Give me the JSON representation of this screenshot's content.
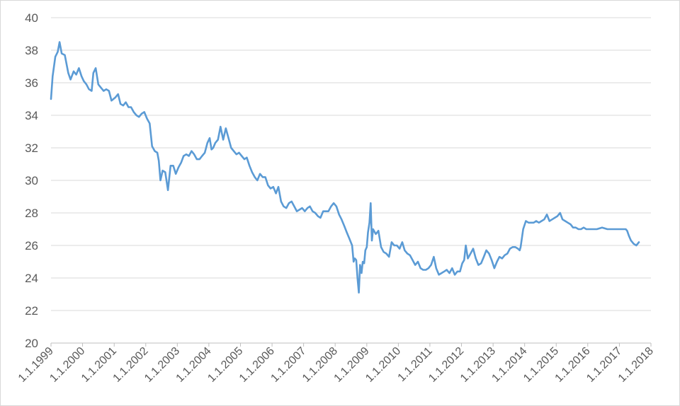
{
  "chart_data": {
    "type": "line",
    "title": "",
    "xlabel": "",
    "ylabel": "",
    "ylim": [
      20,
      40
    ],
    "xlim": [
      "1999-01-01",
      "2018-01-01"
    ],
    "grid": {
      "horizontal": true,
      "vertical": false
    },
    "legend": "none",
    "y_ticks": [
      "20",
      "22",
      "24",
      "26",
      "28",
      "30",
      "32",
      "34",
      "36",
      "38",
      "40"
    ],
    "x_ticks": [
      "1.1.1999",
      "1.1.2000",
      "1.1.2001",
      "1.1.2002",
      "1.1.2003",
      "1.1.2004",
      "1.1.2005",
      "1.1.2006",
      "1.1.2007",
      "1.1.2008",
      "1.1.2009",
      "1.1.2010",
      "1.1.2011",
      "1.1.2012",
      "1.1.2013",
      "1.1.2014",
      "1.1.2015",
      "1.1.2016",
      "1.1.2017",
      "1.1.2018"
    ],
    "series": [
      {
        "color": "#5b9bd5",
        "x": [
          "1999-01-01",
          "1999-01-20",
          "1999-02-20",
          "1999-03-20",
          "1999-04-10",
          "1999-05-05",
          "1999-06-10",
          "1999-07-20",
          "1999-08-15",
          "1999-09-20",
          "1999-10-20",
          "1999-11-20",
          "1999-12-20",
          "2000-01-15",
          "2000-02-15",
          "2000-03-15",
          "2000-04-15",
          "2000-05-05",
          "2000-06-01",
          "2000-07-01",
          "2000-08-01",
          "2000-09-01",
          "2000-10-01",
          "2000-11-01",
          "2000-12-01",
          "2001-01-15",
          "2001-02-15",
          "2001-03-15",
          "2001-04-15",
          "2001-05-15",
          "2001-06-15",
          "2001-07-15",
          "2001-08-15",
          "2001-09-15",
          "2001-10-15",
          "2001-11-15",
          "2001-12-15",
          "2002-01-15",
          "2002-02-15",
          "2002-03-15",
          "2002-04-15",
          "2002-05-15",
          "2002-06-01",
          "2002-06-20",
          "2002-07-15",
          "2002-08-15",
          "2002-09-15",
          "2002-10-15",
          "2002-11-15",
          "2002-12-15",
          "2003-01-15",
          "2003-02-15",
          "2003-03-15",
          "2003-04-15",
          "2003-05-15",
          "2003-06-15",
          "2003-07-15",
          "2003-08-15",
          "2003-09-15",
          "2003-10-15",
          "2003-11-15",
          "2003-12-15",
          "2004-01-10",
          "2004-02-01",
          "2004-02-20",
          "2004-03-15",
          "2004-04-15",
          "2004-05-15",
          "2004-06-15",
          "2004-07-15",
          "2004-08-15",
          "2004-09-15",
          "2004-10-15",
          "2004-11-15",
          "2004-12-15",
          "2005-01-15",
          "2005-02-15",
          "2005-03-15",
          "2005-04-15",
          "2005-05-15",
          "2005-06-15",
          "2005-07-15",
          "2005-08-15",
          "2005-09-15",
          "2005-10-15",
          "2005-11-15",
          "2005-12-15",
          "2006-01-15",
          "2006-02-15",
          "2006-03-15",
          "2006-04-15",
          "2006-05-15",
          "2006-06-15",
          "2006-07-15",
          "2006-08-15",
          "2006-09-15",
          "2006-10-15",
          "2006-11-15",
          "2006-12-15",
          "2007-01-15",
          "2007-02-15",
          "2007-03-15",
          "2007-04-15",
          "2007-05-15",
          "2007-06-15",
          "2007-07-15",
          "2007-08-15",
          "2007-09-15",
          "2007-10-15",
          "2007-11-15",
          "2007-12-15",
          "2008-01-15",
          "2008-02-15",
          "2008-03-15",
          "2008-04-15",
          "2008-05-15",
          "2008-06-15",
          "2008-07-15",
          "2008-08-01",
          "2008-08-15",
          "2008-09-01",
          "2008-09-15",
          "2008-10-01",
          "2008-10-15",
          "2008-11-01",
          "2008-11-15",
          "2008-12-01",
          "2008-12-15",
          "2009-01-01",
          "2009-01-15",
          "2009-02-01",
          "2009-02-15",
          "2009-03-01",
          "2009-03-15",
          "2009-04-15",
          "2009-05-15",
          "2009-06-15",
          "2009-07-15",
          "2009-08-15",
          "2009-09-15",
          "2009-10-15",
          "2009-11-15",
          "2009-12-15",
          "2010-01-15",
          "2010-02-15",
          "2010-03-15",
          "2010-04-15",
          "2010-05-15",
          "2010-06-15",
          "2010-07-15",
          "2010-08-15",
          "2010-09-15",
          "2010-10-15",
          "2010-11-15",
          "2010-12-15",
          "2011-01-15",
          "2011-02-15",
          "2011-03-15",
          "2011-04-15",
          "2011-05-15",
          "2011-06-15",
          "2011-07-15",
          "2011-08-15",
          "2011-09-15",
          "2011-10-15",
          "2011-11-15",
          "2011-12-15",
          "2012-01-10",
          "2012-02-01",
          "2012-02-20",
          "2012-03-15",
          "2012-04-15",
          "2012-05-15",
          "2012-06-15",
          "2012-07-15",
          "2012-08-15",
          "2012-09-15",
          "2012-10-15",
          "2012-11-15",
          "2012-12-15",
          "2013-01-15",
          "2013-02-15",
          "2013-03-15",
          "2013-04-15",
          "2013-05-15",
          "2013-06-15",
          "2013-07-15",
          "2013-08-15",
          "2013-09-15",
          "2013-10-15",
          "2013-11-05",
          "2013-11-15",
          "2013-12-15",
          "2014-01-15",
          "2014-02-15",
          "2014-03-15",
          "2014-04-15",
          "2014-05-15",
          "2014-06-15",
          "2014-07-15",
          "2014-08-15",
          "2014-09-15",
          "2014-10-15",
          "2014-11-15",
          "2014-12-15",
          "2015-01-15",
          "2015-02-15",
          "2015-03-15",
          "2015-04-15",
          "2015-05-15",
          "2015-06-15",
          "2015-07-15",
          "2015-08-15",
          "2015-09-15",
          "2015-10-15",
          "2015-11-15",
          "2015-12-15",
          "2016-02-15",
          "2016-04-15",
          "2016-06-15",
          "2016-08-15",
          "2016-10-15",
          "2016-12-15",
          "2017-02-15",
          "2017-03-15",
          "2017-04-01",
          "2017-04-20",
          "2017-05-15",
          "2017-06-15",
          "2017-07-15",
          "2017-08-15"
        ],
        "values": [
          35.0,
          36.4,
          37.6,
          37.9,
          38.5,
          37.8,
          37.7,
          36.6,
          36.2,
          36.7,
          36.5,
          36.9,
          36.4,
          36.1,
          35.9,
          35.6,
          35.5,
          36.6,
          36.9,
          35.9,
          35.7,
          35.5,
          35.6,
          35.5,
          34.9,
          35.1,
          35.3,
          34.7,
          34.6,
          34.8,
          34.5,
          34.5,
          34.2,
          34.0,
          33.9,
          34.1,
          34.2,
          33.8,
          33.5,
          32.1,
          31.8,
          31.7,
          31.2,
          30.0,
          30.6,
          30.5,
          29.4,
          30.9,
          30.9,
          30.4,
          30.8,
          31.1,
          31.5,
          31.6,
          31.5,
          31.8,
          31.6,
          31.3,
          31.3,
          31.5,
          31.7,
          32.3,
          32.6,
          31.9,
          32.0,
          32.3,
          32.5,
          33.3,
          32.5,
          33.2,
          32.6,
          32.0,
          31.8,
          31.6,
          31.7,
          31.5,
          31.3,
          31.4,
          30.9,
          30.5,
          30.2,
          30.0,
          30.4,
          30.2,
          30.2,
          29.7,
          29.5,
          29.6,
          29.2,
          29.6,
          28.7,
          28.4,
          28.3,
          28.6,
          28.7,
          28.4,
          28.1,
          28.2,
          28.3,
          28.1,
          28.3,
          28.4,
          28.1,
          28.0,
          27.8,
          27.7,
          28.1,
          28.1,
          28.1,
          28.4,
          28.6,
          28.4,
          27.9,
          27.6,
          27.2,
          26.8,
          26.4,
          26.0,
          25.0,
          25.2,
          25.1,
          24.0,
          23.1,
          24.8,
          24.3,
          25.0,
          24.9,
          25.7,
          25.9,
          26.8,
          27.4,
          28.6,
          26.3,
          27.0,
          26.7,
          26.9,
          25.9,
          25.6,
          25.5,
          25.3,
          26.2,
          26.0,
          26.0,
          25.8,
          26.2,
          25.7,
          25.5,
          25.4,
          25.1,
          24.8,
          25.0,
          24.6,
          24.5,
          24.5,
          24.6,
          24.8,
          25.3,
          24.6,
          24.2,
          24.3,
          24.4,
          24.5,
          24.3,
          24.6,
          24.2,
          24.4,
          24.4,
          24.9,
          25.1,
          26.0,
          25.2,
          25.5,
          25.8,
          25.2,
          24.8,
          24.9,
          25.3,
          25.7,
          25.5,
          25.1,
          24.6,
          25.0,
          25.3,
          25.2,
          25.4,
          25.5,
          25.8,
          25.9,
          25.9,
          25.8,
          25.7,
          25.9,
          27.0,
          27.5,
          27.4,
          27.4,
          27.4,
          27.5,
          27.4,
          27.5,
          27.6,
          27.9,
          27.5,
          27.6,
          27.7,
          27.8,
          28.0,
          27.6,
          27.5,
          27.4,
          27.3,
          27.1,
          27.1,
          27.0,
          27.0,
          27.1,
          27.0,
          27.0,
          27.0,
          27.1,
          27.0,
          27.0,
          27.0,
          27.0,
          27.0,
          26.9,
          26.6,
          26.3,
          26.1,
          26.0,
          26.2
        ]
      }
    ]
  }
}
